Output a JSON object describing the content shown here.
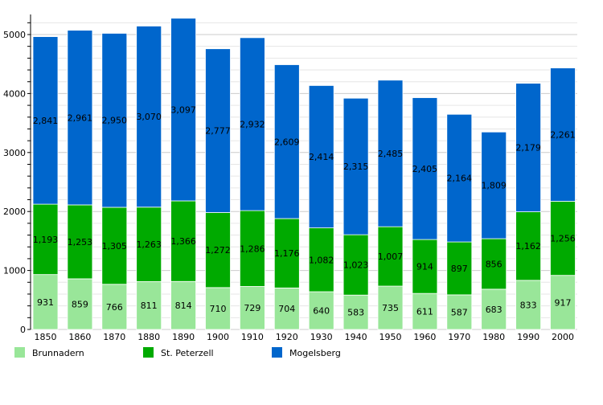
{
  "chart_data": {
    "type": "bar",
    "stacked": true,
    "categories": [
      "1850",
      "1860",
      "1870",
      "1880",
      "1890",
      "1900",
      "1910",
      "1920",
      "1930",
      "1940",
      "1950",
      "1960",
      "1970",
      "1980",
      "1990",
      "2000"
    ],
    "series": [
      {
        "name": "Brunnadern",
        "color": "#99e699",
        "values": [
          931,
          859,
          766,
          811,
          814,
          710,
          729,
          704,
          640,
          583,
          735,
          611,
          587,
          683,
          833,
          917
        ],
        "labels": [
          "931",
          "859",
          "766",
          "811",
          "814",
          "710",
          "729",
          "704",
          "640",
          "583",
          "735",
          "611",
          "587",
          "683",
          "833",
          "917"
        ]
      },
      {
        "name": "St. Peterzell",
        "color": "#00aa00",
        "values": [
          1193,
          1253,
          1305,
          1263,
          1366,
          1272,
          1286,
          1176,
          1082,
          1023,
          1007,
          914,
          897,
          856,
          1162,
          1256
        ],
        "labels": [
          "1,193",
          "1,253",
          "1,305",
          "1,263",
          "1,366",
          "1,272",
          "1,286",
          "1,176",
          "1,082",
          "1,023",
          "1,007",
          "914",
          "897",
          "856",
          "1,162",
          "1,256"
        ]
      },
      {
        "name": "Mogelsberg",
        "color": "#0066cc",
        "values": [
          2841,
          2961,
          2950,
          3070,
          3097,
          2777,
          2932,
          2609,
          2414,
          2315,
          2485,
          2405,
          2164,
          1809,
          2179,
          2261
        ],
        "labels": [
          "2,841",
          "2,961",
          "2,950",
          "3,070",
          "3,097",
          "2,777",
          "2,932",
          "2,609",
          "2,414",
          "2,315",
          "2,485",
          "2,405",
          "2,164",
          "1,809",
          "2,179",
          "2,261"
        ]
      }
    ],
    "ylim": [
      0,
      5000
    ],
    "yticks": [
      "0",
      "1000",
      "2000",
      "3000",
      "4000",
      "5000"
    ],
    "grid": true,
    "legend_position": "bottom"
  }
}
